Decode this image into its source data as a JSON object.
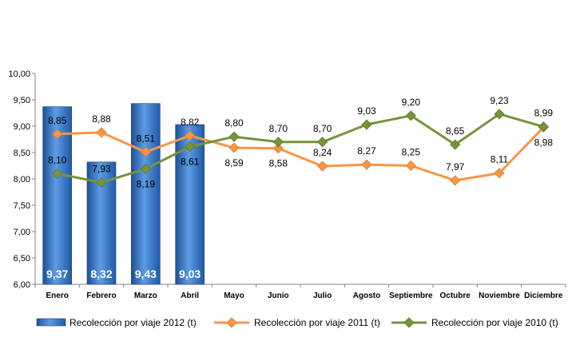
{
  "chart_data": {
    "type": "bar",
    "categories": [
      "Enero",
      "Febrero",
      "Marzo",
      "Abril",
      "Mayo",
      "Junio",
      "Julio",
      "Agosto",
      "Septiembre",
      "Octubre",
      "Noviembre",
      "Diciembre"
    ],
    "ylim": [
      6.0,
      10.0
    ],
    "yticks": [
      "6,00",
      "6,50",
      "7,00",
      "7,50",
      "8,00",
      "8,50",
      "9,00",
      "9,50",
      "10,00"
    ],
    "legend_position": "bottom",
    "series": [
      {
        "name": "Recolección por viaje 2012 (t)",
        "type": "bar",
        "color": "#2f6fc4",
        "values": [
          9.37,
          8.32,
          9.43,
          9.03,
          null,
          null,
          null,
          null,
          null,
          null,
          null,
          null
        ],
        "labels": [
          "9,37",
          "8,32",
          "9,43",
          "9,03",
          "",
          "",
          "",
          "",
          "",
          "",
          "",
          ""
        ]
      },
      {
        "name": "Recolección por viaje 2011 (t)",
        "type": "line",
        "color": "#f79646",
        "values": [
          8.85,
          8.88,
          8.51,
          8.82,
          8.59,
          8.58,
          8.24,
          8.27,
          8.25,
          7.97,
          8.11,
          8.98
        ],
        "labels": [
          "8,85",
          "8,88",
          "8,51",
          "8,82",
          "8,59",
          "8,58",
          "8,24",
          "8,27",
          "8,25",
          "7,97",
          "8,11",
          "8,98"
        ]
      },
      {
        "name": "Recolección por viaje 2010 (t)",
        "type": "line",
        "color": "#77933c",
        "values": [
          8.1,
          7.93,
          8.19,
          8.61,
          8.8,
          8.7,
          8.7,
          9.03,
          9.2,
          8.65,
          9.23,
          8.99
        ],
        "labels": [
          "8,10",
          "7,93",
          "8,19",
          "8,61",
          "8,80",
          "8,70",
          "8,70",
          "9,03",
          "9,20",
          "8,65",
          "9,23",
          "8,99"
        ]
      }
    ]
  }
}
